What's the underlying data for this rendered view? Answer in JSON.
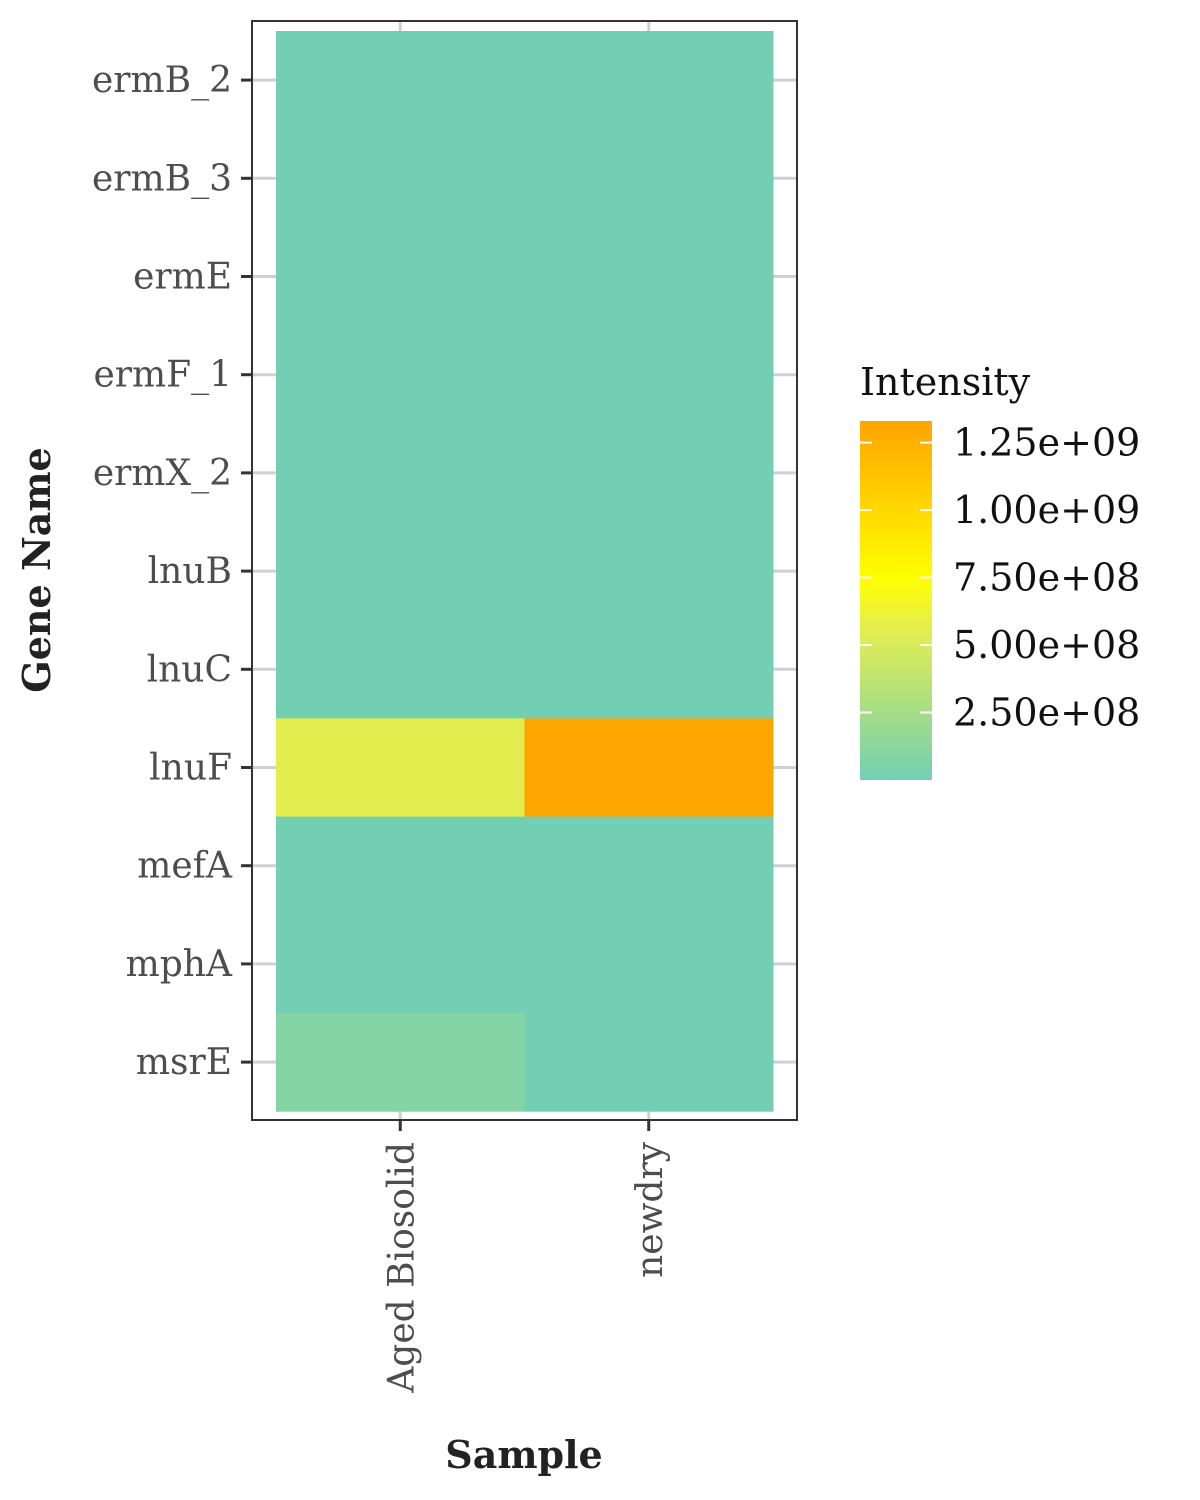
{
  "chart_data": {
    "type": "heatmap",
    "title": "",
    "xlabel": "Sample",
    "ylabel": "Gene Name",
    "x_categories": [
      "Aged Biosolid",
      "newdry"
    ],
    "y_categories": [
      "ermB_2",
      "ermB_3",
      "ermE",
      "ermF_1",
      "ermX_2",
      "lnuB",
      "lnuC",
      "lnuF",
      "mefA",
      "mphA",
      "msrE"
    ],
    "values": [
      [
        0,
        0
      ],
      [
        0,
        0
      ],
      [
        0,
        0
      ],
      [
        0,
        0
      ],
      [
        0,
        0
      ],
      [
        0,
        0
      ],
      [
        0,
        0
      ],
      [
        560000000,
        1330000000
      ],
      [
        0,
        0
      ],
      [
        0,
        0
      ],
      [
        90000000,
        0
      ]
    ],
    "legend": {
      "title": "Intensity",
      "position": "right",
      "ticks": [
        250000000,
        500000000,
        750000000,
        1000000000,
        1250000000
      ],
      "tick_labels": [
        "2.50e+08",
        "5.00e+08",
        "7.50e+08",
        "1.00e+09",
        "1.25e+09"
      ],
      "range": [
        0,
        1330000000
      ],
      "colors": [
        "#72cfb4",
        "#e3ee4f",
        "#ffff00",
        "#ffa500"
      ]
    },
    "grid": true
  }
}
